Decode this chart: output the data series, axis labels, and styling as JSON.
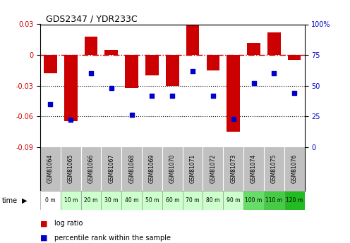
{
  "title": "GDS2347 / YDR233C",
  "samples": [
    "GSM81064",
    "GSM81065",
    "GSM81066",
    "GSM81067",
    "GSM81068",
    "GSM81069",
    "GSM81070",
    "GSM81071",
    "GSM81072",
    "GSM81073",
    "GSM81074",
    "GSM81075",
    "GSM81076"
  ],
  "time_labels": [
    "0 m",
    "10 m",
    "20 m",
    "30 m",
    "40 m",
    "50 m",
    "60 m",
    "70 m",
    "80 m",
    "90 m",
    "100 m",
    "110 m",
    "120 m"
  ],
  "log_ratio": [
    -0.018,
    -0.065,
    0.018,
    0.005,
    -0.032,
    -0.02,
    -0.03,
    0.03,
    -0.015,
    -0.075,
    0.012,
    0.022,
    -0.005
  ],
  "percentile": [
    35,
    22,
    60,
    48,
    26,
    42,
    42,
    62,
    42,
    23,
    52,
    60,
    44
  ],
  "bar_color": "#cc0000",
  "dot_color": "#0000cc",
  "bg_color": "#ffffff",
  "zero_line_color": "#cc0000",
  "hline_color": "#000000",
  "ylim_left": [
    -0.09,
    0.03
  ],
  "ylim_right": [
    0,
    100
  ],
  "yticks_left": [
    -0.09,
    -0.06,
    -0.03,
    0,
    0.03
  ],
  "yticks_right": [
    0,
    25,
    50,
    75,
    100
  ],
  "hline_positions": [
    -0.03,
    -0.06
  ],
  "sample_bg_color": "#c0c0c0",
  "time_bg_colors": [
    "#ffffff",
    "#ccffcc",
    "#ccffcc",
    "#ccffcc",
    "#ccffcc",
    "#ccffcc",
    "#ccffcc",
    "#ccffcc",
    "#ccffcc",
    "#ccffcc",
    "#66dd66",
    "#44cc44",
    "#22bb22"
  ],
  "legend_log_ratio": "log ratio",
  "legend_percentile": "percentile rank within the sample"
}
